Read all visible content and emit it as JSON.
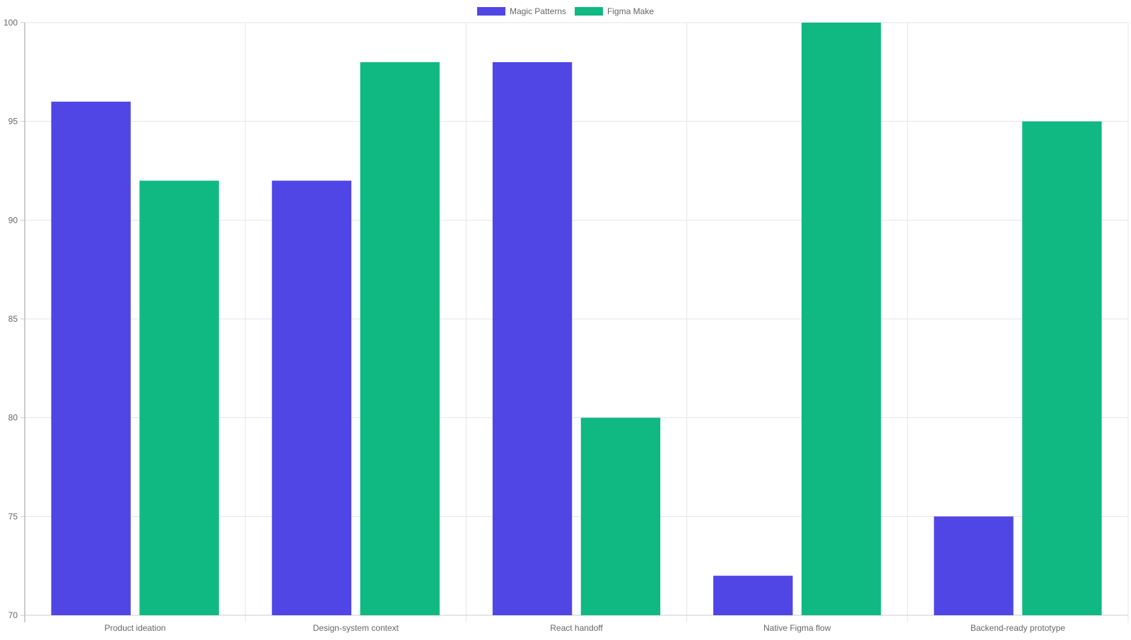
{
  "chart_data": {
    "type": "bar",
    "categories": [
      "Product ideation",
      "Design-system context",
      "React handoff",
      "Native Figma flow",
      "Backend-ready prototype"
    ],
    "series": [
      {
        "name": "Magic Patterns",
        "values": [
          96,
          92,
          98,
          72,
          75
        ],
        "color": "#4f46e5"
      },
      {
        "name": "Figma Make",
        "values": [
          92,
          98,
          80,
          100,
          95
        ],
        "color": "#10b981"
      }
    ],
    "ylim": [
      70,
      100
    ],
    "yticks": [
      70,
      75,
      80,
      85,
      90,
      95,
      100
    ],
    "grid": true,
    "legend": "top-center"
  }
}
